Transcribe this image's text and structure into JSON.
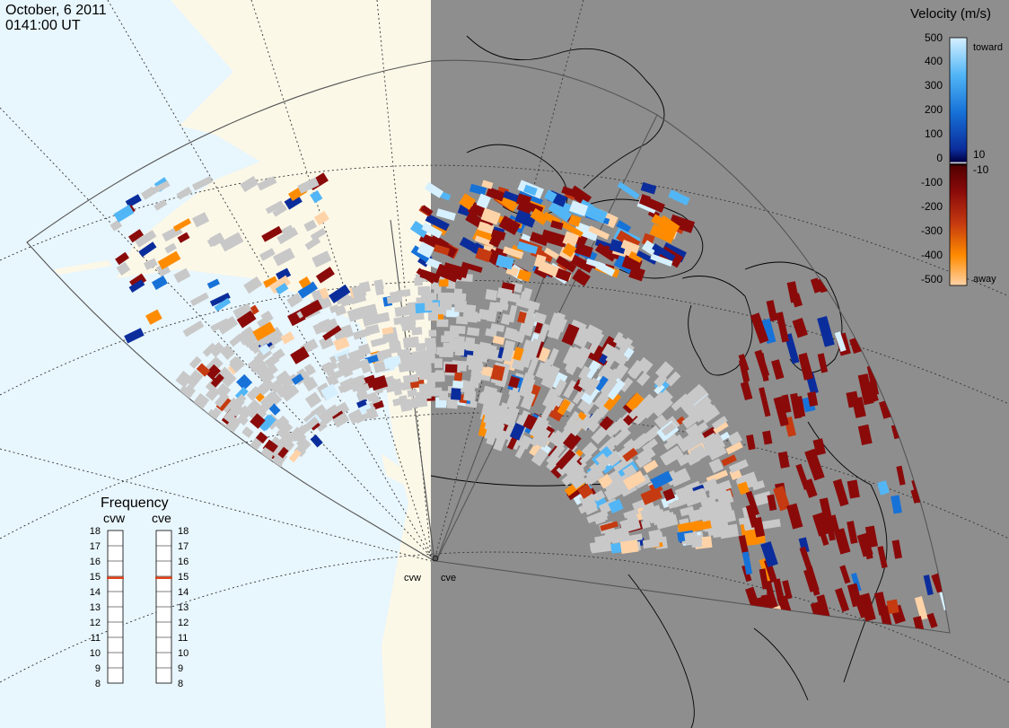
{
  "header": {
    "date": "October, 6 2011",
    "time": "0141:00 UT"
  },
  "colors": {
    "ocean": "#e8f6fd",
    "land": "#fcf8e8",
    "night": "#8e8e8e",
    "fov_line": "#555555",
    "grid_line": "#333333",
    "ground_scatter": "#c8c8c8"
  },
  "velocity_scale": {
    "title": "Velocity (m/s)",
    "toward_label": "toward",
    "away_label": "away",
    "ticks": [
      "500",
      "400",
      "300",
      "200",
      "100",
      "10",
      "0",
      "-10",
      "-100",
      "-200",
      "-300",
      "-400",
      "-500"
    ],
    "gradient": [
      {
        "stop": 0.0,
        "color": "#d6f0ff"
      },
      {
        "stop": 0.15,
        "color": "#52b6f6"
      },
      {
        "stop": 0.3,
        "color": "#1772d8"
      },
      {
        "stop": 0.45,
        "color": "#0b2d9c"
      },
      {
        "stop": 0.5,
        "color": "#000044"
      },
      {
        "stop": 0.505,
        "color": "#ffffff"
      },
      {
        "stop": 0.51,
        "color": "#000000"
      },
      {
        "stop": 0.52,
        "color": "#550000"
      },
      {
        "stop": 0.62,
        "color": "#8a0a0a"
      },
      {
        "stop": 0.75,
        "color": "#c53a10"
      },
      {
        "stop": 0.88,
        "color": "#ff8c00"
      },
      {
        "stop": 1.0,
        "color": "#ffd3a8"
      }
    ]
  },
  "frequency_panel": {
    "title": "Frequency",
    "radars": [
      {
        "code": "cvw",
        "frequency_mhz": 14.9
      },
      {
        "code": "cve",
        "frequency_mhz": 14.9
      }
    ],
    "scale_ticks": [
      "18",
      "17",
      "16",
      "15",
      "14",
      "13",
      "12",
      "11",
      "10",
      "9",
      "8"
    ],
    "range_mhz": [
      8,
      18
    ],
    "marker_color": "#e0441a"
  },
  "radar_labels": [
    {
      "code": "cvw"
    },
    {
      "code": "cve"
    }
  ],
  "map_legend_note": ""
}
